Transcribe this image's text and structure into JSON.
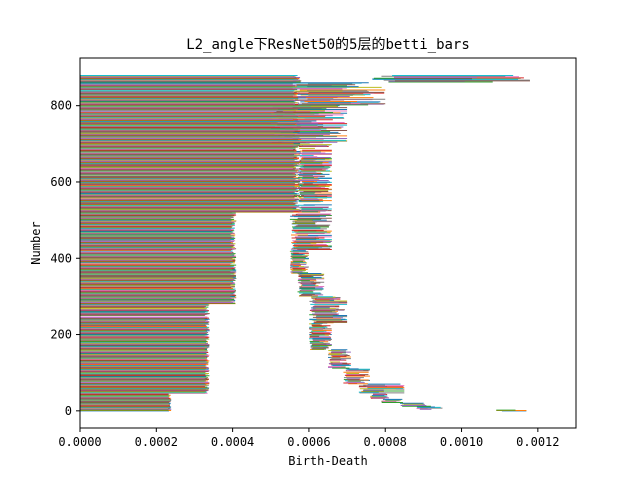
{
  "chart_data": {
    "type": "barcode",
    "title": "L2_angle下ResNet50的5层的betti_bars",
    "xlabel": "Birth-Death",
    "ylabel": "Number",
    "xlim": [
      0.0,
      0.0013
    ],
    "ylim": [
      -45,
      925
    ],
    "x_ticks": [
      "0.0000",
      "0.0002",
      "0.0004",
      "0.0006",
      "0.0008",
      "0.0010",
      "0.0012"
    ],
    "y_ticks": [
      "0",
      "200",
      "400",
      "600",
      "800"
    ],
    "bar_count": 880,
    "grid": false,
    "palette": [
      "#1f77b4",
      "#ff7f0e",
      "#2ca02c",
      "#d62728",
      "#9467bd",
      "#8c564b",
      "#e377c2",
      "#7f7f7f",
      "#bcbd22",
      "#17becf"
    ],
    "segments": [
      {
        "y_from": 0,
        "y_to": 2,
        "start": 0.00109,
        "end": 0.00117
      },
      {
        "y_from": 3,
        "y_to": 10,
        "start": 0.00088,
        "end": 0.00095
      },
      {
        "y_from": 11,
        "y_to": 20,
        "start": 0.00083,
        "end": 0.00093
      },
      {
        "y_from": 21,
        "y_to": 30,
        "start": 0.00079,
        "end": 0.00085
      },
      {
        "y_from": 31,
        "y_to": 45,
        "start": 0.00076,
        "end": 0.00081
      },
      {
        "y_from": 46,
        "y_to": 70,
        "start": 0.00073,
        "end": 0.00085
      },
      {
        "y_from": 71,
        "y_to": 110,
        "start": 0.00069,
        "end": 0.00076
      },
      {
        "y_from": 111,
        "y_to": 160,
        "start": 0.00065,
        "end": 0.00071
      },
      {
        "y_from": 161,
        "y_to": 230,
        "start": 0.0006,
        "end": 0.00066
      },
      {
        "y_from": 231,
        "y_to": 300,
        "start": 0.0006,
        "end": 0.0007
      },
      {
        "y_from": 301,
        "y_to": 360,
        "start": 0.00057,
        "end": 0.00064
      },
      {
        "y_from": 361,
        "y_to": 420,
        "start": 0.00055,
        "end": 0.0006
      },
      {
        "y_from": 421,
        "y_to": 520,
        "start": 0.00055,
        "end": 0.00066
      },
      {
        "y_from": 521,
        "y_to": 700,
        "start": 0.00057,
        "end": 0.00066
      },
      {
        "y_from": 701,
        "y_to": 800,
        "start": 0.0005,
        "end": 0.0007
      },
      {
        "y_from": 801,
        "y_to": 860,
        "start": 0.00055,
        "end": 0.0008
      },
      {
        "y_from": 861,
        "y_to": 879,
        "start": 0.00075,
        "end": 0.0012
      }
    ],
    "left_block": [
      {
        "y_from": 0,
        "y_to": 45,
        "end": 0.00024
      },
      {
        "y_from": 46,
        "y_to": 280,
        "end": 0.00034
      },
      {
        "y_from": 281,
        "y_to": 520,
        "end": 0.00041
      },
      {
        "y_from": 521,
        "y_to": 879,
        "end": 0.00058
      }
    ]
  }
}
